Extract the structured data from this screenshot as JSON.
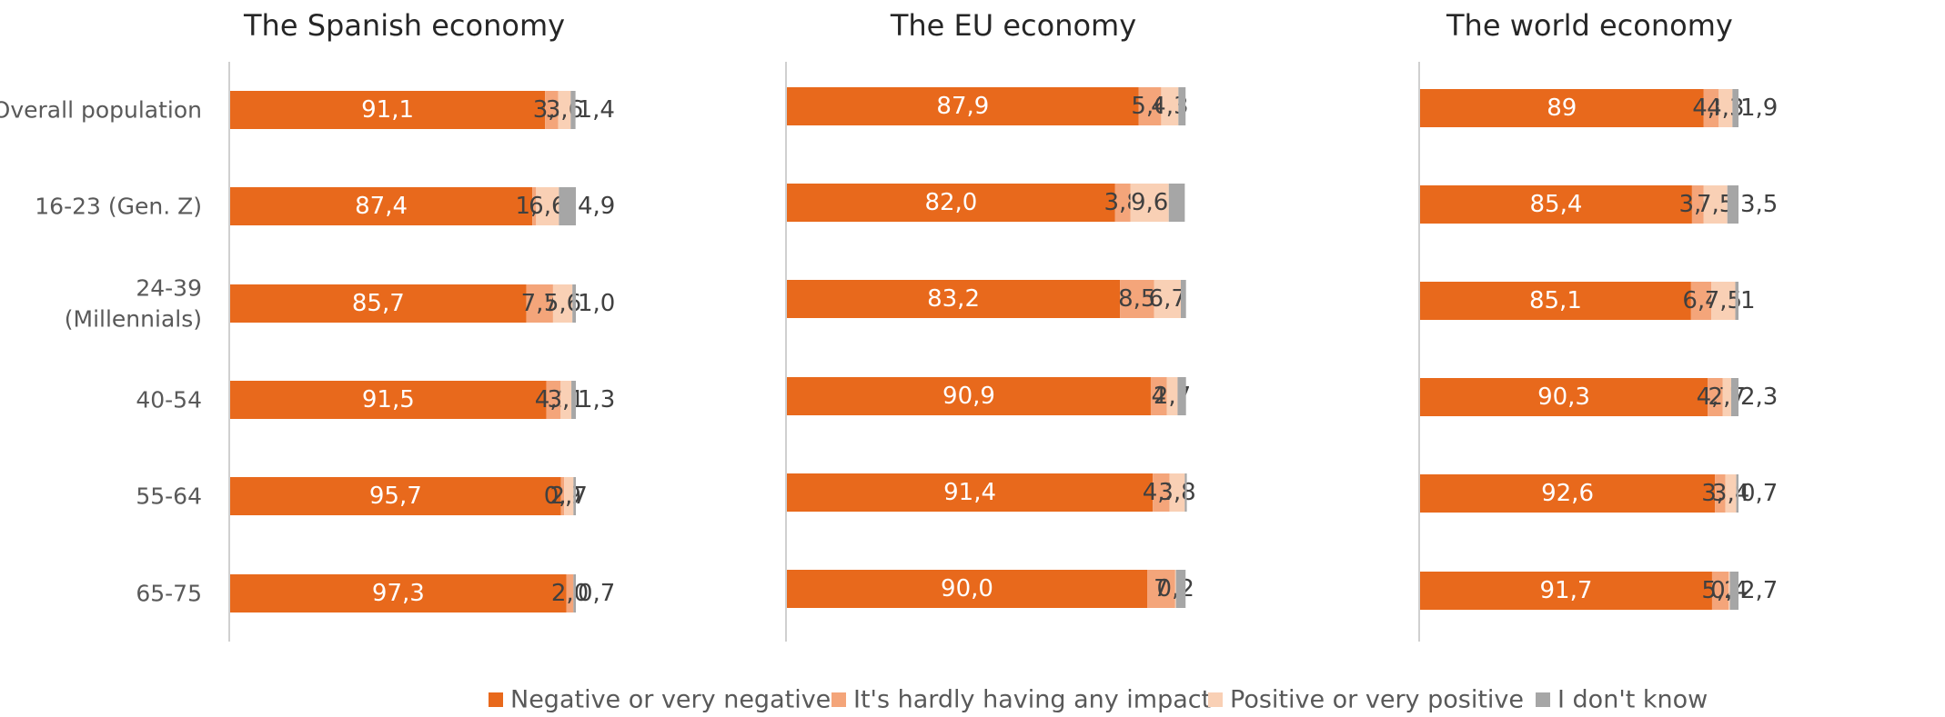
{
  "legend": [
    {
      "label": "Negative or very negative",
      "color": "#E8691C"
    },
    {
      "label": "It's hardly having any impact",
      "color": "#F4A57A"
    },
    {
      "label": "Positive or very positive",
      "color": "#F9D0B5"
    },
    {
      "label": "I don't know",
      "color": "#A6A6A6"
    }
  ],
  "chart_data": [
    {
      "type": "bar",
      "orientation": "horizontal",
      "stacked": true,
      "title": "The Spanish economy",
      "categories": [
        "Overall population",
        "16-23 (Gen. Z)",
        "24-39 (Millennials)",
        "40-54",
        "55-64",
        "65-75"
      ],
      "series": [
        {
          "name": "Negative or very negative",
          "values": [
            91.1,
            87.4,
            85.7,
            91.5,
            95.7,
            97.3
          ],
          "labels": [
            "91,1",
            "87,4",
            "85,7",
            "91,5",
            "95,7",
            "97,3"
          ]
        },
        {
          "name": "It's hardly having any impact",
          "values": [
            3.8,
            1.1,
            7.7,
            4.1,
            0.9,
            2.0
          ],
          "labels": [
            "3,8",
            "1,1",
            "7,7",
            "4,1",
            "0,9",
            "2,0"
          ]
        },
        {
          "name": "Positive or very positive",
          "values": [
            3.6,
            6.6,
            5.6,
            3.1,
            2.7,
            0.0
          ],
          "labels": [
            "3,6",
            "6,6",
            "5,6",
            "3,1",
            "2,7",
            ""
          ]
        },
        {
          "name": "I don't know",
          "values": [
            1.4,
            4.9,
            1.0,
            1.3,
            0.7,
            0.7
          ],
          "labels": [
            "1,4",
            "4,9",
            "1,0",
            "1,3",
            "",
            "0,7"
          ]
        }
      ]
    },
    {
      "type": "bar",
      "orientation": "horizontal",
      "stacked": true,
      "title": "The EU economy",
      "categories": [
        "Overall population",
        "16-23 (Gen. Z)",
        "24-39 (Millennials)",
        "40-54",
        "55-64",
        "65-75"
      ],
      "series": [
        {
          "name": "Negative or very negative",
          "values": [
            87.9,
            82.0,
            83.2,
            90.9,
            91.4,
            90.0
          ],
          "labels": [
            "87,9",
            "82,0",
            "83,2",
            "90,9",
            "91,4",
            "90,0"
          ]
        },
        {
          "name": "It's hardly having any impact",
          "values": [
            5.6,
            3.8,
            8.5,
            4.0,
            4.2,
            7.0
          ],
          "labels": [
            "5,6",
            "3,8",
            "8,5",
            "4",
            "4,2",
            "7"
          ]
        },
        {
          "name": "Positive or very positive",
          "values": [
            4.3,
            9.6,
            6.7,
            2.7,
            3.8,
            0.2
          ],
          "labels": [
            "4,3",
            "9,6",
            "6,7",
            "2,7",
            "3,8",
            "0,2"
          ]
        },
        {
          "name": "I don't know",
          "values": [
            1.8,
            4.0,
            1.3,
            2.1,
            0.5,
            2.4
          ],
          "labels": [
            "",
            "",
            "",
            "",
            "",
            ""
          ]
        }
      ]
    },
    {
      "type": "bar",
      "orientation": "horizontal",
      "stacked": true,
      "title": "The world economy",
      "categories": [
        "Overall population",
        "16-23 (Gen. Z)",
        "24-39 (Millennials)",
        "40-54",
        "55-64",
        "65-75"
      ],
      "series": [
        {
          "name": "Negative or very negative",
          "values": [
            89,
            85.4,
            85.1,
            90.3,
            92.6,
            91.7
          ],
          "labels": [
            "89",
            "85,4",
            "85,1",
            "90,3",
            "92,6",
            "91,7"
          ]
        },
        {
          "name": "It's hardly having any impact",
          "values": [
            4.8,
            3.6,
            6.4,
            4.7,
            3.3,
            5.2
          ],
          "labels": [
            "4,8",
            "3,6",
            "6,4",
            "4,7",
            "3,3",
            "5,2"
          ]
        },
        {
          "name": "Positive or very positive",
          "values": [
            4.3,
            7.5,
            7.5,
            2.7,
            3.4,
            0.4
          ],
          "labels": [
            "4,3",
            "7,5",
            "7,5",
            "2,7",
            "3,4",
            "0,4"
          ]
        },
        {
          "name": "I don't know",
          "values": [
            1.9,
            3.5,
            1,
            2.3,
            0.7,
            2.7
          ],
          "labels": [
            "1,9",
            "3,5",
            "1",
            "2,3",
            "0,7",
            "2,7"
          ]
        }
      ]
    }
  ],
  "row_labels": [
    [
      "Overall population"
    ],
    [
      "16-23 (Gen. Z)"
    ],
    [
      "24-39",
      "(Millennials)"
    ],
    [
      "40-54"
    ],
    [
      "55-64"
    ],
    [
      "65-75"
    ]
  ]
}
